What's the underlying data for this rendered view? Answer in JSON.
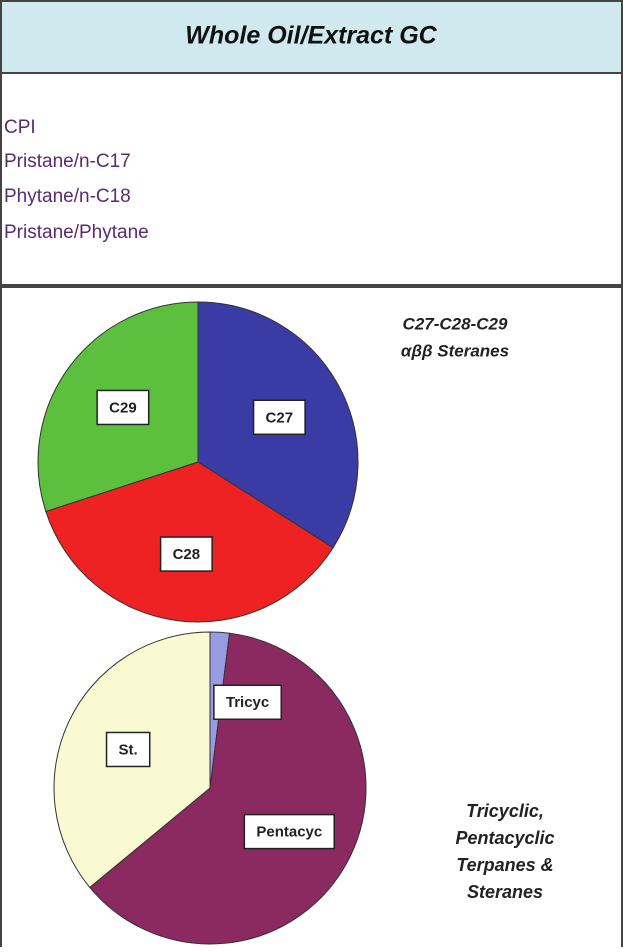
{
  "header": {
    "title": "Whole Oil/Extract  GC"
  },
  "parameters": [
    "CPI",
    "Pristane/n-C17",
    "Phytane/n-C18",
    "Pristane/Phytane"
  ],
  "chart_data": [
    {
      "type": "pie",
      "title": [
        "C27-C28-C29",
        "αββ Steranes"
      ],
      "categories": [
        "C27",
        "C28",
        "C29"
      ],
      "values": [
        34,
        36,
        30
      ],
      "colors": [
        "#3b3ba6",
        "#ee2222",
        "#5cbf3e"
      ]
    },
    {
      "type": "pie",
      "title": [
        "Tricyclic,",
        "Pentacyclic",
        "Terpanes &",
        "Steranes"
      ],
      "categories": [
        "Tricyc",
        "Pentacyc",
        "St."
      ],
      "values": [
        2,
        62,
        36
      ],
      "colors": [
        "#9a9ae0",
        "#8a2a60",
        "#fafad2"
      ]
    }
  ]
}
